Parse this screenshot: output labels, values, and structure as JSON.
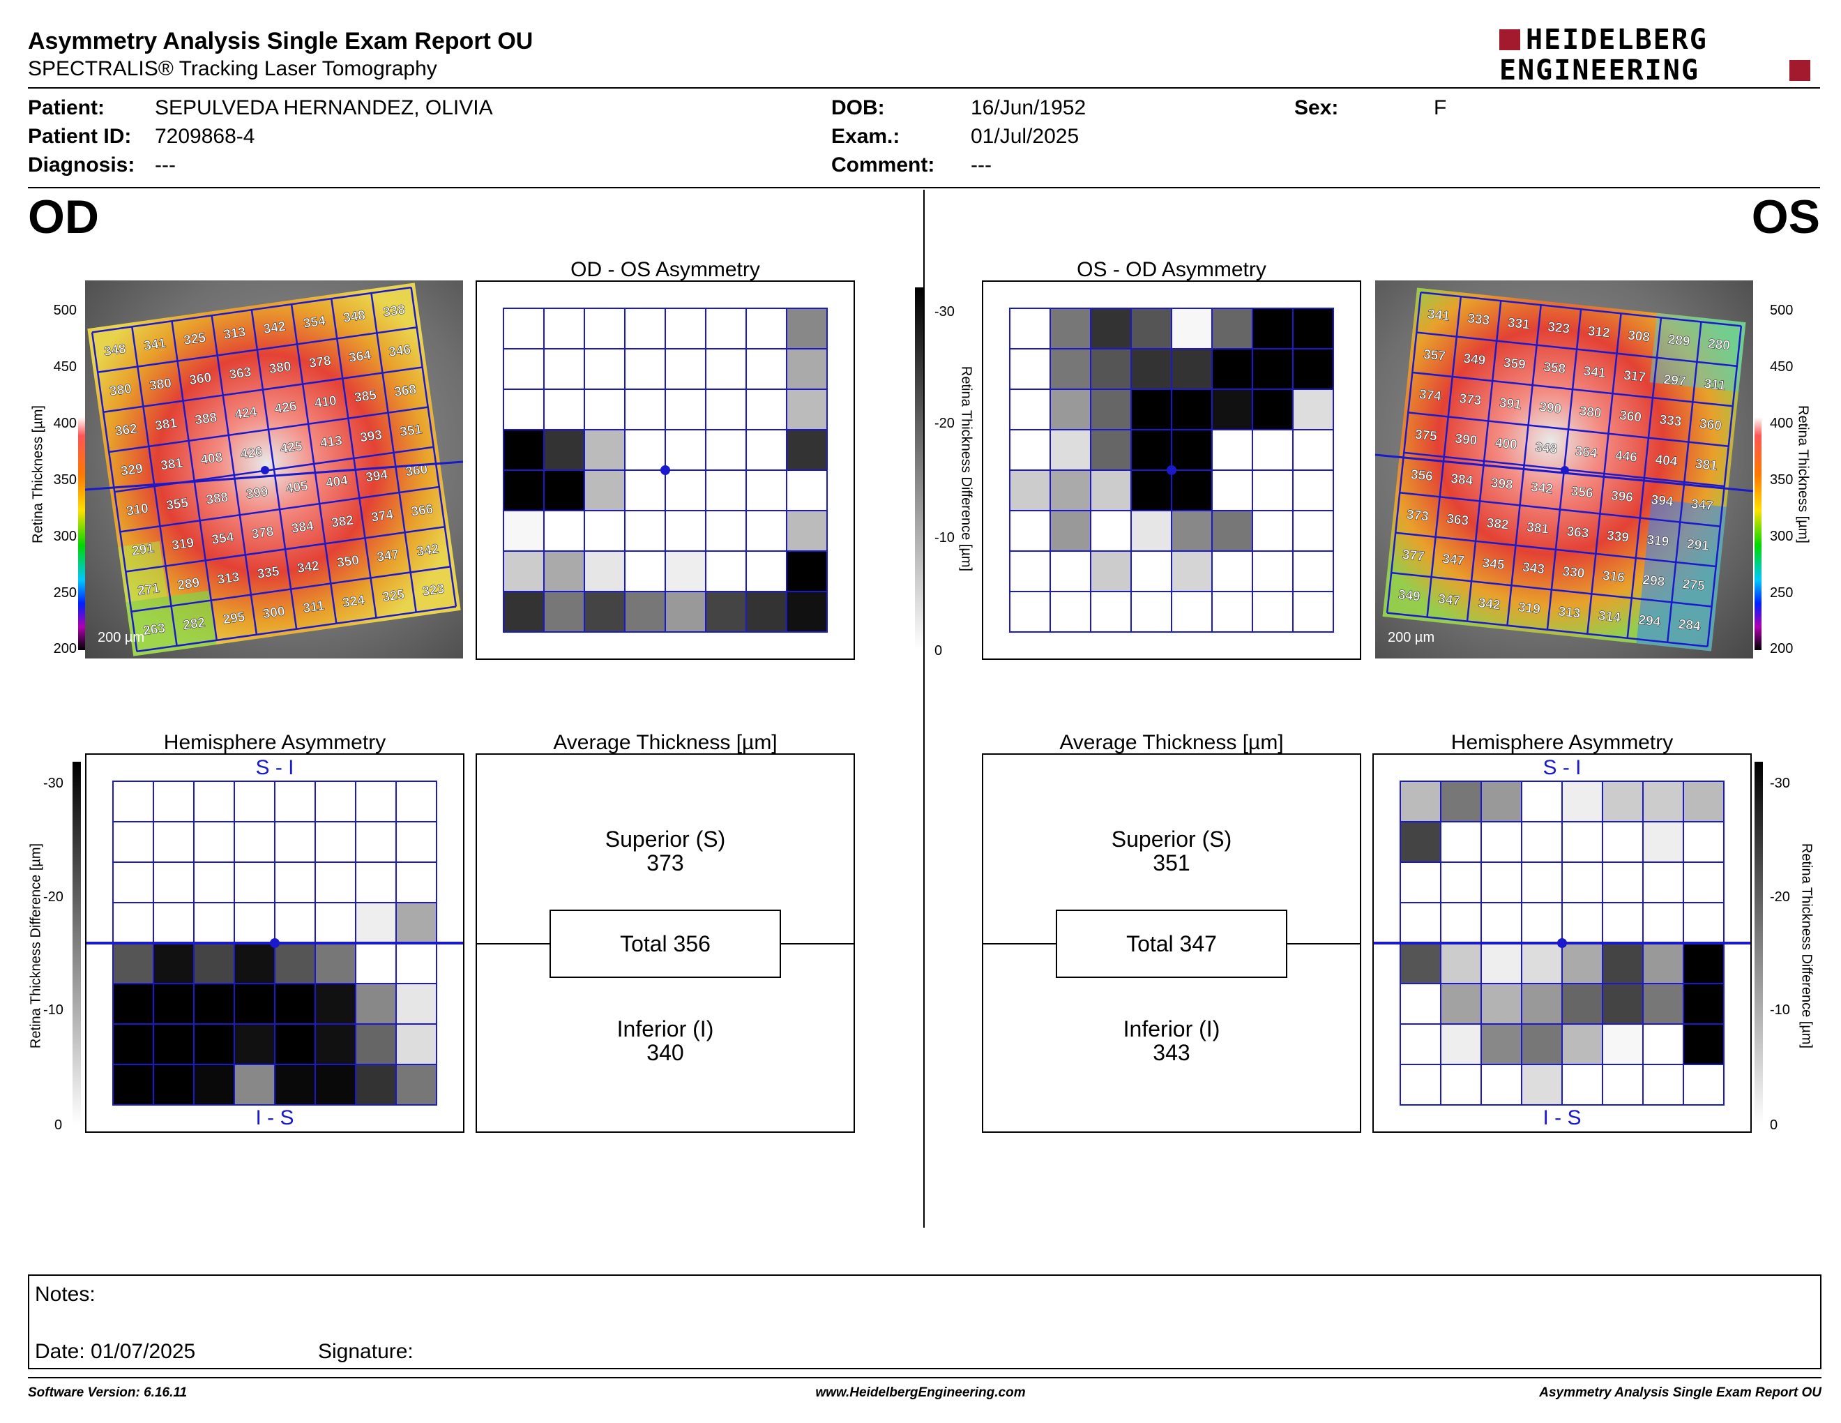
{
  "header": {
    "title": "Asymmetry Analysis Single Exam Report OU",
    "subtitle": "SPECTRALIS® Tracking Laser Tomography",
    "logo_line1": "HEIDELBERG",
    "logo_line2": "ENGINEERING",
    "brand_color": "#a3192e"
  },
  "patient": {
    "patient_label": "Patient:",
    "patient_value": "SEPULVEDA HERNANDEZ, OLIVIA",
    "id_label": "Patient ID:",
    "id_value": "7209868-4",
    "diagnosis_label": "Diagnosis:",
    "diagnosis_value": "---",
    "dob_label": "DOB:",
    "dob_value": "16/Jun/1952",
    "exam_label": "Exam.:",
    "exam_value": "01/Jul/2025",
    "comment_label": "Comment:",
    "comment_value": "---",
    "sex_label": "Sex:",
    "sex_value": "F"
  },
  "od": {
    "eye_label": "OD",
    "asym_title": "OD - OS Asymmetry",
    "hemi_title": "Hemisphere Asymmetry",
    "avg_title": "Average Thickness [µm]",
    "scale_bar": "200 µm",
    "thickness": [
      [
        348,
        341,
        325,
        313,
        342,
        354,
        348,
        338
      ],
      [
        380,
        380,
        360,
        363,
        380,
        378,
        364,
        346
      ],
      [
        362,
        381,
        388,
        424,
        426,
        410,
        385,
        368
      ],
      [
        329,
        381,
        408,
        426,
        425,
        413,
        393,
        351
      ],
      [
        310,
        355,
        388,
        399,
        405,
        404,
        394,
        360
      ],
      [
        291,
        319,
        354,
        378,
        384,
        382,
        374,
        366
      ],
      [
        271,
        289,
        313,
        335,
        342,
        350,
        347,
        342
      ],
      [
        263,
        282,
        295,
        300,
        311,
        324,
        325,
        323
      ]
    ],
    "asym_shades": [
      [
        0,
        0,
        0,
        0,
        0,
        0,
        0,
        14
      ],
      [
        0,
        0,
        0,
        0,
        0,
        0,
        0,
        10
      ],
      [
        0,
        0,
        0,
        0,
        0,
        0,
        0,
        8
      ],
      [
        30,
        24,
        8,
        0,
        0,
        0,
        0,
        24
      ],
      [
        30,
        30,
        8,
        0,
        0,
        0,
        0,
        0
      ],
      [
        1,
        0,
        0,
        0,
        0,
        0,
        0,
        8
      ],
      [
        6,
        10,
        3,
        0,
        2,
        0,
        0,
        30
      ],
      [
        24,
        16,
        22,
        16,
        12,
        22,
        24,
        28
      ]
    ],
    "hemi_shades": [
      [
        0,
        0,
        0,
        0,
        0,
        0,
        0,
        0
      ],
      [
        0,
        0,
        0,
        0,
        0,
        0,
        0,
        0
      ],
      [
        0,
        0,
        0,
        0,
        0,
        0,
        0,
        0
      ],
      [
        0,
        0,
        0,
        0,
        0,
        0,
        2,
        10
      ],
      [
        20,
        28,
        22,
        28,
        20,
        16,
        0,
        0
      ],
      [
        30,
        30,
        30,
        30,
        30,
        28,
        14,
        3
      ],
      [
        30,
        30,
        30,
        28,
        30,
        28,
        18,
        4
      ],
      [
        30,
        30,
        29,
        14,
        29,
        29,
        24,
        16
      ]
    ],
    "superior_label": "Superior (S)",
    "superior_value": "373",
    "total_label": "Total 356",
    "inferior_label": "Inferior (I)",
    "inferior_value": "340"
  },
  "os": {
    "eye_label": "OS",
    "asym_title": "OS - OD Asymmetry",
    "hemi_title": "Hemisphere Asymmetry",
    "avg_title": "Average Thickness [µm]",
    "scale_bar": "200 µm",
    "thickness": [
      [
        341,
        333,
        331,
        323,
        312,
        308,
        289,
        280
      ],
      [
        357,
        349,
        359,
        358,
        341,
        317,
        297,
        311
      ],
      [
        374,
        373,
        391,
        390,
        380,
        360,
        333,
        360
      ],
      [
        375,
        390,
        400,
        348,
        364,
        446,
        404,
        381
      ],
      [
        356,
        384,
        398,
        342,
        356,
        396,
        394,
        347
      ],
      [
        373,
        363,
        382,
        381,
        363,
        339,
        319,
        291
      ],
      [
        377,
        347,
        345,
        343,
        330,
        316,
        298,
        275
      ],
      [
        349,
        347,
        342,
        319,
        313,
        314,
        294,
        284
      ]
    ],
    "asym_shades": [
      [
        0,
        16,
        24,
        20,
        1,
        18,
        30,
        30
      ],
      [
        0,
        16,
        20,
        24,
        24,
        30,
        30,
        30
      ],
      [
        0,
        12,
        18,
        30,
        30,
        28,
        30,
        4
      ],
      [
        0,
        4,
        18,
        30,
        30,
        0,
        0,
        0
      ],
      [
        6,
        10,
        6,
        30,
        30,
        0,
        0,
        0
      ],
      [
        0,
        12,
        0,
        3,
        14,
        16,
        0,
        0
      ],
      [
        0,
        0,
        6,
        0,
        5,
        0,
        0,
        0
      ],
      [
        0,
        0,
        0,
        0,
        0,
        0,
        0,
        0
      ]
    ],
    "hemi_shades": [
      [
        8,
        16,
        12,
        0,
        2,
        6,
        6,
        8
      ],
      [
        22,
        0,
        0,
        0,
        0,
        0,
        2,
        0
      ],
      [
        0,
        0,
        0,
        0,
        0,
        0,
        0,
        0
      ],
      [
        0,
        0,
        0,
        0,
        0,
        0,
        0,
        0
      ],
      [
        20,
        6,
        2,
        4,
        10,
        22,
        12,
        30
      ],
      [
        0,
        11,
        9,
        12,
        18,
        22,
        16,
        30
      ],
      [
        0,
        2,
        14,
        16,
        8,
        1,
        0,
        30
      ],
      [
        0,
        0,
        0,
        4,
        0,
        0,
        0,
        0
      ]
    ],
    "superior_label": "Superior (S)",
    "superior_value": "351",
    "total_label": "Total 347",
    "inferior_label": "Inferior (I)",
    "inferior_value": "343"
  },
  "grid_labels": {
    "top": "S - I",
    "bottom": "I - S"
  },
  "thickness_scale": {
    "label": "Retina  Thickness [µm]",
    "ticks": [
      "500",
      "450",
      "400",
      "350",
      "300",
      "250",
      "200"
    ]
  },
  "difference_scale": {
    "label": "Retina Thickness Difference [µm]",
    "ticks": [
      "-30",
      "-20",
      "-10",
      "0"
    ]
  },
  "notes": {
    "notes_label": "Notes:",
    "date_label": "Date: 01/07/2025",
    "signature_label": "Signature:"
  },
  "footer": {
    "left": "Software Version: 6.16.11",
    "center": "www.HeidelbergEngineering.com",
    "right": "Asymmetry Analysis Single Exam Report OU"
  }
}
